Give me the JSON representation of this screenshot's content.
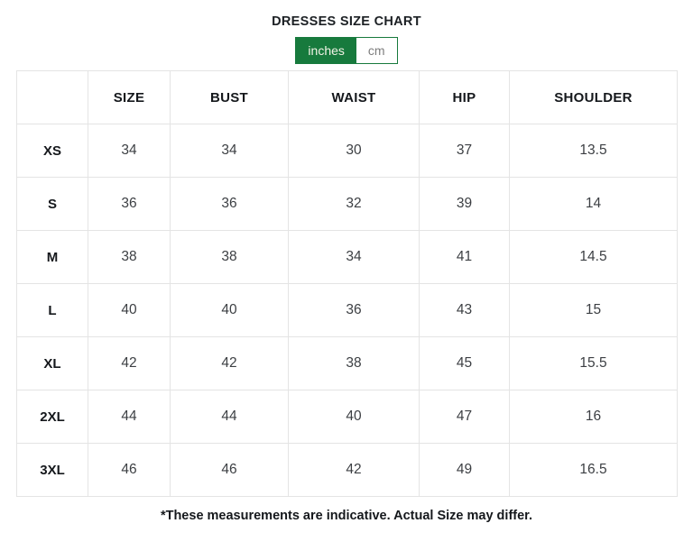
{
  "header": {
    "title": "DRESSES SIZE CHART"
  },
  "unit_toggle": {
    "active_color": "#177a3d",
    "options": [
      {
        "label": "inches",
        "active": true
      },
      {
        "label": "cm",
        "active": false
      }
    ]
  },
  "table": {
    "headers": [
      "",
      "SIZE",
      "BUST",
      "WAIST",
      "HIP",
      "SHOULDER"
    ],
    "rows": [
      {
        "label": "XS",
        "values": [
          "34",
          "34",
          "30",
          "37",
          "13.5"
        ]
      },
      {
        "label": "S",
        "values": [
          "36",
          "36",
          "32",
          "39",
          "14"
        ]
      },
      {
        "label": "M",
        "values": [
          "38",
          "38",
          "34",
          "41",
          "14.5"
        ]
      },
      {
        "label": "L",
        "values": [
          "40",
          "40",
          "36",
          "43",
          "15"
        ]
      },
      {
        "label": "XL",
        "values": [
          "42",
          "42",
          "38",
          "45",
          "15.5"
        ]
      },
      {
        "label": "2XL",
        "values": [
          "44",
          "44",
          "40",
          "47",
          "16"
        ]
      },
      {
        "label": "3XL",
        "values": [
          "46",
          "46",
          "42",
          "49",
          "16.5"
        ]
      }
    ]
  },
  "footer": {
    "note": "*These measurements are indicative. Actual Size may differ."
  }
}
